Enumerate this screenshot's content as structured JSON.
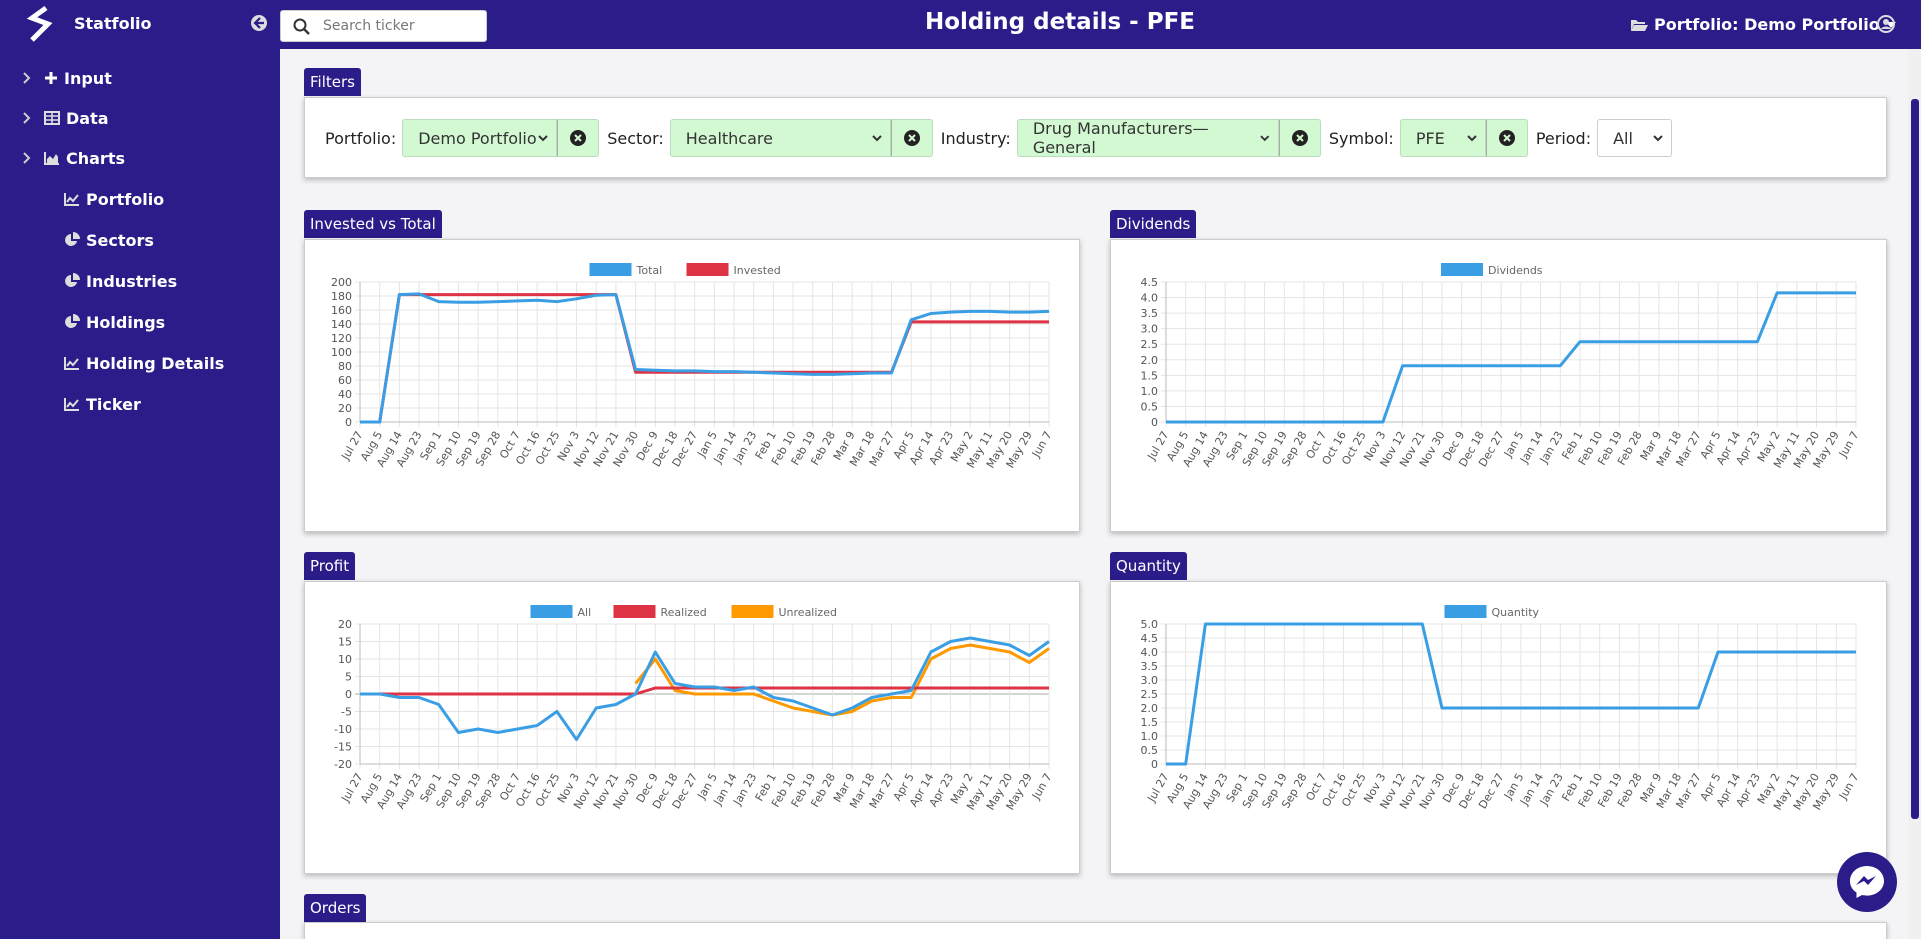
{
  "header": {
    "brand": "Statfolio",
    "title": "Holding details - PFE",
    "search_placeholder": "Search ticker",
    "portfolio_selector": "Portfolio: Demo Portfolio"
  },
  "sidebar": {
    "items": [
      {
        "label": "Input",
        "icon": "plus-icon",
        "expandable": true
      },
      {
        "label": "Data",
        "icon": "table-icon",
        "expandable": true
      },
      {
        "label": "Charts",
        "icon": "area-chart-icon",
        "expandable": true
      },
      {
        "label": "Portfolio",
        "icon": "line-chart-icon"
      },
      {
        "label": "Sectors",
        "icon": "pie-chart-icon"
      },
      {
        "label": "Industries",
        "icon": "pie-chart-icon"
      },
      {
        "label": "Holdings",
        "icon": "pie-chart-icon"
      },
      {
        "label": "Holding Details",
        "icon": "line-chart-icon"
      },
      {
        "label": "Ticker",
        "icon": "line-chart-icon"
      }
    ]
  },
  "filters": {
    "title": "Filters",
    "portfolio_label": "Portfolio:",
    "portfolio_value": "Demo Portfolio",
    "sector_label": "Sector:",
    "sector_value": "Healthcare",
    "industry_label": "Industry:",
    "industry_value": "Drug Manufacturers—General",
    "symbol_label": "Symbol:",
    "symbol_value": "PFE",
    "period_label": "Period:",
    "period_value": "All"
  },
  "panels": {
    "invested": "Invested vs Total",
    "dividends": "Dividends",
    "profit": "Profit",
    "quantity": "Quantity",
    "orders": "Orders"
  },
  "colors": {
    "brand": "#2a1d8a",
    "filter_bg": "#d3f9d3",
    "blue": "#3a9ee4",
    "red": "#dd3344",
    "orange": "#ff9900"
  },
  "chart_data": [
    {
      "id": "invested",
      "type": "line",
      "x": [
        "Jul 27",
        "Aug 5",
        "Aug 14",
        "Aug 23",
        "Sep 1",
        "Sep 10",
        "Sep 19",
        "Sep 28",
        "Oct 7",
        "Oct 16",
        "Oct 25",
        "Nov 3",
        "Nov 12",
        "Nov 21",
        "Nov 30",
        "Dec 9",
        "Dec 18",
        "Dec 27",
        "Jan 5",
        "Jan 14",
        "Jan 23",
        "Feb 1",
        "Feb 10",
        "Feb 19",
        "Feb 28",
        "Mar 9",
        "Mar 18",
        "Mar 27",
        "Apr 5",
        "Apr 14",
        "Apr 23",
        "May 2",
        "May 11",
        "May 20",
        "May 29",
        "Jun 7"
      ],
      "ylim": [
        0,
        200
      ],
      "yticks": [
        0,
        20,
        40,
        60,
        80,
        100,
        120,
        140,
        160,
        180,
        200
      ],
      "series": [
        {
          "name": "Total",
          "color": "#3a9ee4",
          "values": [
            0,
            0,
            182,
            183,
            172,
            171,
            171,
            172,
            173,
            174,
            172,
            176,
            181,
            182,
            75,
            74,
            73,
            73,
            72,
            72,
            71,
            70,
            69,
            68,
            68,
            69,
            70,
            70,
            146,
            155,
            157,
            158,
            158,
            157,
            157,
            158
          ]
        },
        {
          "name": "Invested",
          "color": "#dd3344",
          "values": [
            0,
            0,
            182,
            182,
            182,
            182,
            182,
            182,
            182,
            182,
            182,
            182,
            182,
            182,
            71,
            71,
            71,
            71,
            71,
            71,
            71,
            71,
            71,
            71,
            71,
            71,
            71,
            71,
            143,
            143,
            143,
            143,
            143,
            143,
            143,
            143
          ]
        }
      ],
      "legend": "top"
    },
    {
      "id": "dividends",
      "type": "line",
      "x": [
        "Jul 27",
        "Aug 5",
        "Aug 14",
        "Aug 23",
        "Sep 1",
        "Sep 10",
        "Sep 19",
        "Sep 28",
        "Oct 7",
        "Oct 16",
        "Oct 25",
        "Nov 3",
        "Nov 12",
        "Nov 21",
        "Nov 30",
        "Dec 9",
        "Dec 18",
        "Dec 27",
        "Jan 5",
        "Jan 14",
        "Jan 23",
        "Feb 1",
        "Feb 10",
        "Feb 19",
        "Feb 28",
        "Mar 9",
        "Mar 18",
        "Mar 27",
        "Apr 5",
        "Apr 14",
        "Apr 23",
        "May 2",
        "May 11",
        "May 20",
        "May 29",
        "Jun 7"
      ],
      "ylim": [
        0,
        4.5
      ],
      "yticks": [
        "0",
        "0.5",
        "1.0",
        "1.5",
        "2.0",
        "2.5",
        "3.0",
        "3.5",
        "4.0",
        "4.5"
      ],
      "series": [
        {
          "name": "Dividends",
          "color": "#3a9ee4",
          "values": [
            0,
            0,
            0,
            0,
            0,
            0,
            0,
            0,
            0,
            0,
            0,
            0,
            1.81,
            1.81,
            1.81,
            1.81,
            1.81,
            1.81,
            1.81,
            1.81,
            1.81,
            2.58,
            2.58,
            2.58,
            2.58,
            2.58,
            2.58,
            2.58,
            2.58,
            2.58,
            2.58,
            4.15,
            4.15,
            4.15,
            4.15,
            4.15
          ]
        }
      ],
      "legend": "top"
    },
    {
      "id": "profit",
      "type": "line",
      "x": [
        "Jul 27",
        "Aug 5",
        "Aug 14",
        "Aug 23",
        "Sep 1",
        "Sep 10",
        "Sep 19",
        "Sep 28",
        "Oct 7",
        "Oct 16",
        "Oct 25",
        "Nov 3",
        "Nov 12",
        "Nov 21",
        "Nov 30",
        "Dec 9",
        "Dec 18",
        "Dec 27",
        "Jan 5",
        "Jan 14",
        "Jan 23",
        "Feb 1",
        "Feb 10",
        "Feb 19",
        "Feb 28",
        "Mar 9",
        "Mar 18",
        "Mar 27",
        "Apr 5",
        "Apr 14",
        "Apr 23",
        "May 2",
        "May 11",
        "May 20",
        "May 29",
        "Jun 7"
      ],
      "ylim": [
        -20,
        20
      ],
      "yticks": [
        -20,
        -15,
        -10,
        -5,
        0,
        5,
        10,
        15,
        20
      ],
      "series": [
        {
          "name": "All",
          "color": "#3a9ee4",
          "values": [
            0,
            0,
            -1,
            -1,
            -3,
            -11,
            -10,
            -11,
            -10,
            -9,
            -5,
            -13,
            -4,
            -3,
            0,
            12,
            3,
            2,
            2,
            1,
            2,
            -1,
            -2,
            -4,
            -6,
            -4,
            -1,
            0,
            1,
            12,
            15,
            16,
            15,
            14,
            11,
            15
          ]
        },
        {
          "name": "Realized",
          "color": "#dd3344",
          "values": [
            0,
            0,
            0,
            0,
            0,
            0,
            0,
            0,
            0,
            0,
            0,
            0,
            0,
            0,
            0,
            1.7,
            1.7,
            1.7,
            1.7,
            1.7,
            1.7,
            1.7,
            1.7,
            1.7,
            1.7,
            1.7,
            1.7,
            1.7,
            1.7,
            1.7,
            1.7,
            1.7,
            1.7,
            1.7,
            1.7,
            1.7
          ]
        },
        {
          "name": "Unrealized",
          "color": "#ff9900",
          "values": [
            null,
            null,
            null,
            null,
            null,
            null,
            null,
            null,
            null,
            null,
            null,
            null,
            null,
            null,
            3,
            10,
            1,
            0,
            0,
            0,
            0,
            -2,
            -4,
            -5,
            -6,
            -5,
            -2,
            -1,
            -1,
            10,
            13,
            14,
            13,
            12,
            9,
            13
          ]
        }
      ],
      "legend": "top"
    },
    {
      "id": "quantity",
      "type": "line",
      "x": [
        "Jul 27",
        "Aug 5",
        "Aug 14",
        "Aug 23",
        "Sep 1",
        "Sep 10",
        "Sep 19",
        "Sep 28",
        "Oct 7",
        "Oct 16",
        "Oct 25",
        "Nov 3",
        "Nov 12",
        "Nov 21",
        "Nov 30",
        "Dec 9",
        "Dec 18",
        "Dec 27",
        "Jan 5",
        "Jan 14",
        "Jan 23",
        "Feb 1",
        "Feb 10",
        "Feb 19",
        "Feb 28",
        "Mar 9",
        "Mar 18",
        "Mar 27",
        "Apr 5",
        "Apr 14",
        "Apr 23",
        "May 2",
        "May 11",
        "May 20",
        "May 29",
        "Jun 7"
      ],
      "ylim": [
        0,
        5
      ],
      "yticks": [
        "0",
        "0.5",
        "1.0",
        "1.5",
        "2.0",
        "2.5",
        "3.0",
        "3.5",
        "4.0",
        "4.5",
        "5.0"
      ],
      "series": [
        {
          "name": "Quantity",
          "color": "#3a9ee4",
          "values": [
            0,
            0,
            5,
            5,
            5,
            5,
            5,
            5,
            5,
            5,
            5,
            5,
            5,
            5,
            2,
            2,
            2,
            2,
            2,
            2,
            2,
            2,
            2,
            2,
            2,
            2,
            2,
            2,
            4,
            4,
            4,
            4,
            4,
            4,
            4,
            4
          ]
        }
      ],
      "legend": "top"
    }
  ]
}
